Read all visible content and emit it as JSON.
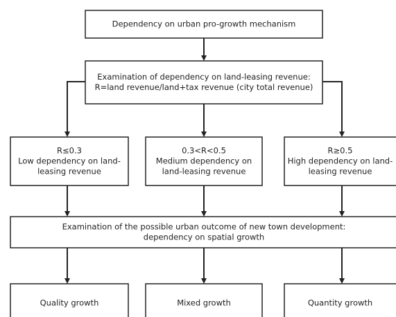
{
  "nodes": [
    {
      "lines": [
        "Dependency on urban pro-growth mechanism"
      ]
    },
    {
      "lines": [
        "Examination of dependency on land-leasing revenue:",
        "R=land revenue/land+tax revenue (city total revenue)"
      ]
    },
    {
      "lines": [
        "R≤0.3",
        "Low dependency on land-",
        "leasing revenue"
      ]
    },
    {
      "lines": [
        "0.3<R<0.5",
        "Medium dependency on",
        "land-leasing revenue"
      ]
    },
    {
      "lines": [
        "R≥0.5",
        "High dependency on land-",
        "leasing revenue"
      ]
    },
    {
      "lines": [
        "Examination of the possible urban outcome of new town development:",
        "dependency on spatial growth"
      ]
    },
    {
      "lines": [
        "Quality growth"
      ]
    },
    {
      "lines": [
        "Mixed growth"
      ]
    },
    {
      "lines": [
        "Quantity growth"
      ]
    }
  ]
}
